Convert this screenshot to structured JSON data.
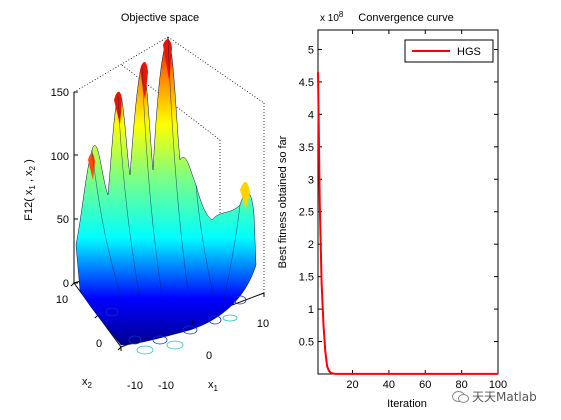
{
  "chart_data": [
    {
      "type": "surface",
      "title": "Objective space",
      "zlabel_parts": [
        "F12( x",
        "1",
        " , x",
        "2",
        " )"
      ],
      "xlabel_base": "x",
      "xlabel_sub": "1",
      "ylabel_base": "x",
      "ylabel_sub": "2",
      "z_ticks": [
        "0",
        "50",
        "100",
        "150"
      ],
      "x_ticks": [
        "-10",
        "0",
        "10"
      ],
      "y_ticks": [
        "-10",
        "0",
        "10"
      ],
      "xlim": [
        -10,
        10
      ],
      "ylim": [
        -10,
        10
      ],
      "zlim": [
        0,
        150
      ],
      "colormap": "jet",
      "contours": true
    },
    {
      "type": "line",
      "title": "Convergence curve",
      "xlabel": "Iteration",
      "ylabel": "Best fitness obtained so far",
      "exponent_label": "x 10",
      "exponent_power": "8",
      "xlim": [
        1,
        100
      ],
      "ylim": [
        0,
        5.3
      ],
      "x_ticks": [
        "20",
        "40",
        "60",
        "80",
        "100"
      ],
      "y_ticks": [
        "0.5",
        "1",
        "1.5",
        "2",
        "2.5",
        "3",
        "3.5",
        "4",
        "4.5",
        "5"
      ],
      "legend_position": "top-right",
      "series": [
        {
          "name": "HGS",
          "color": "#ff0000",
          "x": [
            1,
            2,
            3,
            4,
            5,
            6,
            7,
            8,
            9,
            10,
            12,
            15,
            20,
            30,
            40,
            50,
            60,
            70,
            80,
            90,
            100
          ],
          "y": [
            4.65,
            2.6,
            1.4,
            0.75,
            0.35,
            0.12,
            0.05,
            0.02,
            0.01,
            0.005,
            0.002,
            0.001,
            0.001,
            0.001,
            0.001,
            0.001,
            0.001,
            0.001,
            0.001,
            0.001,
            0.001
          ]
        }
      ]
    }
  ],
  "watermark": {
    "text": "天天Matlab"
  }
}
